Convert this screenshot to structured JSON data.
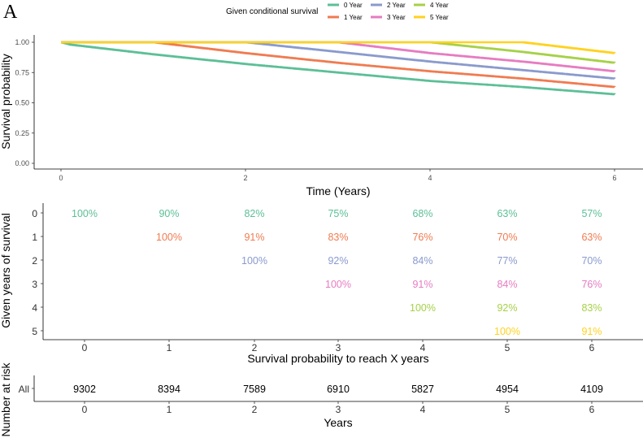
{
  "panel_label": "A",
  "legend": {
    "title": "Given conditional survival",
    "items": [
      {
        "label": "0 Year",
        "color": "#5CBF97"
      },
      {
        "label": "1 Year",
        "color": "#F07B50"
      },
      {
        "label": "2 Year",
        "color": "#8A9ACD"
      },
      {
        "label": "3 Year",
        "color": "#E67CC1"
      },
      {
        "label": "4 Year",
        "color": "#A6D146"
      },
      {
        "label": "5 Year",
        "color": "#FFD21F"
      }
    ]
  },
  "chart_data": [
    {
      "type": "line",
      "step": true,
      "xlabel": "Time (Years)",
      "ylabel": "Survival probability",
      "xlim": [
        0,
        6
      ],
      "ylim": [
        0,
        1
      ],
      "xticks": [
        "0",
        "2",
        "4",
        "6"
      ],
      "yticks": [
        "0.00",
        "0.25",
        "0.50",
        "0.75",
        "1.00"
      ],
      "grid": false,
      "series": [
        {
          "name": "0 Year",
          "color": "#5CBF97",
          "x": [
            0,
            0.1,
            1,
            2,
            3,
            4,
            5,
            6
          ],
          "y": [
            1.0,
            0.98,
            0.9,
            0.82,
            0.75,
            0.68,
            0.63,
            0.57
          ]
        },
        {
          "name": "1 Year",
          "color": "#F07B50",
          "x": [
            0,
            1,
            2,
            3,
            4,
            5,
            6
          ],
          "y": [
            1.0,
            1.0,
            0.91,
            0.83,
            0.76,
            0.7,
            0.63
          ]
        },
        {
          "name": "2 Year",
          "color": "#8A9ACD",
          "x": [
            0,
            2,
            3,
            4,
            5,
            6
          ],
          "y": [
            1.0,
            1.0,
            0.92,
            0.84,
            0.77,
            0.7
          ]
        },
        {
          "name": "3 Year",
          "color": "#E67CC1",
          "x": [
            0,
            3,
            4,
            5,
            6
          ],
          "y": [
            1.0,
            1.0,
            0.91,
            0.84,
            0.76
          ]
        },
        {
          "name": "4 Year",
          "color": "#A6D146",
          "x": [
            0,
            4,
            5,
            6
          ],
          "y": [
            1.0,
            1.0,
            0.92,
            0.83
          ]
        },
        {
          "name": "5 Year",
          "color": "#FFD21F",
          "x": [
            0,
            5,
            6
          ],
          "y": [
            1.0,
            1.0,
            0.91
          ]
        }
      ]
    },
    {
      "type": "table",
      "ylabel": "Given years of survival",
      "xlabel": "Survival probability to reach X years",
      "columns": [
        "0",
        "1",
        "2",
        "3",
        "4",
        "5",
        "6"
      ],
      "rows": [
        {
          "label": "0",
          "color": "#5CBF97",
          "cells": [
            "100%",
            "90%",
            "82%",
            "75%",
            "68%",
            "63%",
            "57%"
          ]
        },
        {
          "label": "1",
          "color": "#F07B50",
          "cells": [
            "",
            "100%",
            "91%",
            "83%",
            "76%",
            "70%",
            "63%"
          ]
        },
        {
          "label": "2",
          "color": "#8A9ACD",
          "cells": [
            "",
            "",
            "100%",
            "92%",
            "84%",
            "77%",
            "70%"
          ]
        },
        {
          "label": "3",
          "color": "#E67CC1",
          "cells": [
            "",
            "",
            "",
            "100%",
            "91%",
            "84%",
            "76%"
          ]
        },
        {
          "label": "4",
          "color": "#A6D146",
          "cells": [
            "",
            "",
            "",
            "",
            "100%",
            "92%",
            "83%"
          ]
        },
        {
          "label": "5",
          "color": "#FFD21F",
          "cells": [
            "",
            "",
            "",
            "",
            "",
            "100%",
            "91%"
          ]
        }
      ]
    },
    {
      "type": "table",
      "ylabel": "Number at risk",
      "xlabel": "Years",
      "columns": [
        "0",
        "1",
        "2",
        "3",
        "4",
        "5",
        "6"
      ],
      "rows": [
        {
          "label": "All",
          "cells": [
            "9302",
            "8394",
            "7589",
            "6910",
            "5827",
            "4954",
            "4109"
          ]
        }
      ]
    }
  ]
}
